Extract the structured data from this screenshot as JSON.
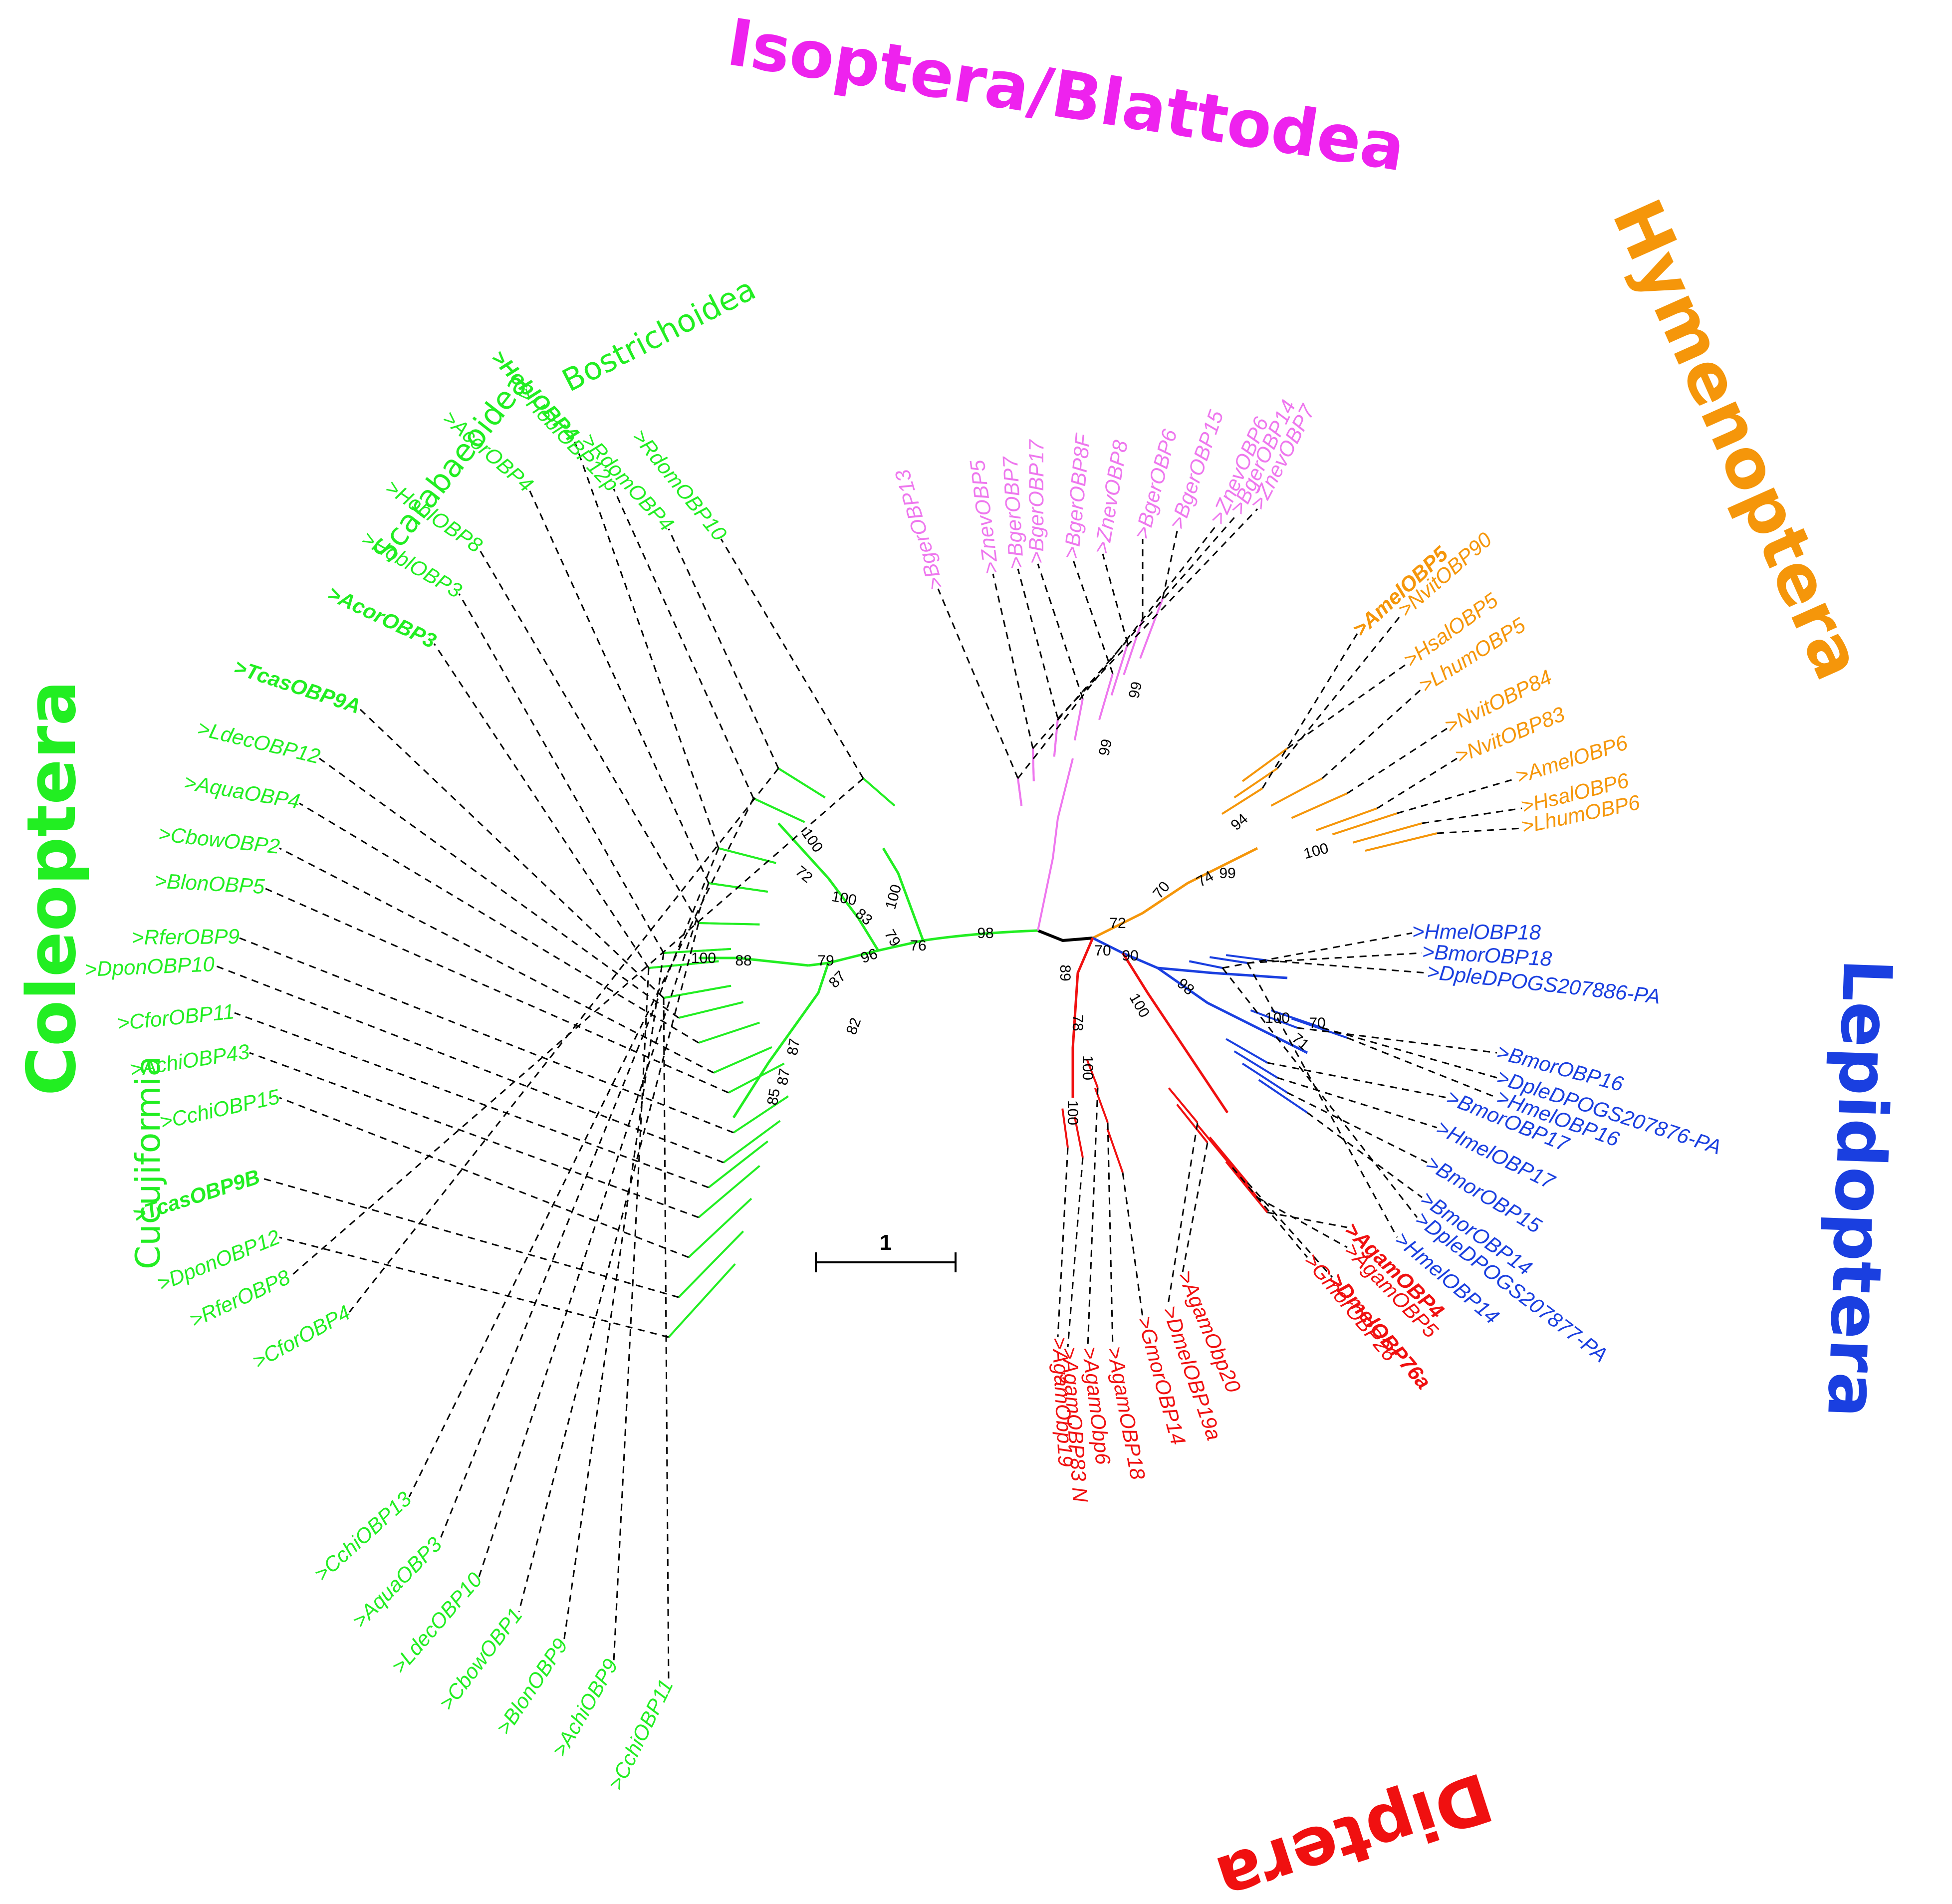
{
  "colors": {
    "coleoptera": "#22ee22",
    "isoptera": "#ee22ee",
    "isoptera_leaf": "#ee77ee",
    "hymenoptera": "#f5960a",
    "lepidoptera": "#1a3fe0",
    "diptera": "#f01010",
    "backbone": "#000000"
  },
  "order_labels": {
    "isoptera": "Isoptera/Blattodea",
    "hymenoptera": "Hymenoptera",
    "lepidoptera": "Lepidoptera",
    "diptera": "Diptera",
    "coleoptera": "Coleoptera"
  },
  "sub_labels": {
    "bostrichoidea": "Bostrichoidea",
    "scarabaeoidea": "Scarabaeoidea",
    "cucujiformia": "Cucujiformia"
  },
  "scale_bar": {
    "label": "1"
  },
  "leaves": {
    "coleoptera": [
      {
        "label": ">RdomOBP10",
        "bold": false
      },
      {
        "label": ">RdomOBP4",
        "bold": false
      },
      {
        "label": ">HoblOBP12p",
        "bold": false
      },
      {
        "label": ">HoblOBP4",
        "bold": true
      },
      {
        "label": ">AcorOBP4",
        "bold": false
      },
      {
        "label": ">HoblOBP8",
        "bold": false
      },
      {
        "label": ">HoblOBP3",
        "bold": false
      },
      {
        "label": ">AcorOBP3",
        "bold": true
      },
      {
        "label": ">TcasOBP9A",
        "bold": true
      },
      {
        "label": ">LdecOBP12",
        "bold": false
      },
      {
        "label": ">AquaOBP4",
        "bold": false
      },
      {
        "label": ">CbowOBP2",
        "bold": false
      },
      {
        "label": ">BlonOBP5",
        "bold": false
      },
      {
        "label": ">RferOBP9",
        "bold": false
      },
      {
        "label": ">DponOBP10",
        "bold": false
      },
      {
        "label": ">CforOBP11",
        "bold": false
      },
      {
        "label": ">AchiOBP43",
        "bold": false
      },
      {
        "label": ">CchiOBP15",
        "bold": false
      },
      {
        "label": ">TcasOBP9B",
        "bold": true
      },
      {
        "label": ">DponOBP12",
        "bold": false
      },
      {
        "label": ">RferOBP8",
        "bold": false
      },
      {
        "label": ">CforOBP4",
        "bold": false
      },
      {
        "label": ">CchiOBP13",
        "bold": false
      },
      {
        "label": ">AquaOBP3",
        "bold": false
      },
      {
        "label": ">LdecOBP10",
        "bold": false
      },
      {
        "label": ">CbowOBP1",
        "bold": false
      },
      {
        "label": ">BlonOBP9",
        "bold": false
      },
      {
        "label": ">AchiOBP9",
        "bold": false
      },
      {
        "label": ">CchiOBP11",
        "bold": false
      }
    ],
    "isoptera": [
      {
        "label": ">BgerOBP13",
        "bold": false
      },
      {
        "label": ">ZnevOBP5",
        "bold": false
      },
      {
        "label": ">BgerOBP7",
        "bold": false
      },
      {
        "label": ">BgerOBP17",
        "bold": false
      },
      {
        "label": ">BgerOBP8F",
        "bold": false
      },
      {
        "label": ">ZnevOBP8",
        "bold": false
      },
      {
        "label": ">BgerOBP6",
        "bold": false
      },
      {
        "label": ">BgerOBP15",
        "bold": false
      },
      {
        "label": ">ZnevOBP6",
        "bold": false
      },
      {
        "label": ">BgerOBP14",
        "bold": false
      },
      {
        "label": ">ZnevOBP7",
        "bold": false
      }
    ],
    "hymenoptera": [
      {
        "label": ">AmelOBP5",
        "bold": true
      },
      {
        "label": ">NvitOBP90",
        "bold": false
      },
      {
        "label": ">HsalOBP5",
        "bold": false
      },
      {
        "label": ">LhumOBP5",
        "bold": false
      },
      {
        "label": ">NvitOBP84",
        "bold": false
      },
      {
        "label": ">NvitOBP83",
        "bold": false
      },
      {
        "label": ">AmelOBP6",
        "bold": false
      },
      {
        "label": ">HsalOBP6",
        "bold": false
      },
      {
        "label": ">LhumOBP6",
        "bold": false
      }
    ],
    "lepidoptera": [
      {
        "label": ">HmelOBP18",
        "bold": false
      },
      {
        "label": ">BmorOBP18",
        "bold": false
      },
      {
        "label": ">DpleDPOGS207886-PA",
        "bold": false
      },
      {
        "label": ">BmorOBP16",
        "bold": false
      },
      {
        "label": ">DpleDPOGS207876-PA",
        "bold": false
      },
      {
        "label": ">HmelOBP16",
        "bold": false
      },
      {
        "label": ">BmorOBP17",
        "bold": false
      },
      {
        "label": ">HmelOBP17",
        "bold": false
      },
      {
        "label": ">BmorOBP15",
        "bold": false
      },
      {
        "label": ">BmorOBP14",
        "bold": false
      },
      {
        "label": ">DpleDPOGS207877-PA",
        "bold": false
      },
      {
        "label": ">HmelOBP14",
        "bold": false
      }
    ],
    "diptera": [
      {
        "label": ">AgamObp19",
        "bold": false
      },
      {
        "label": ">AgamOBP83 N",
        "bold": false
      },
      {
        "label": ">AgamObp6",
        "bold": false
      },
      {
        "label": ">AgamOBP18",
        "bold": false
      },
      {
        "label": ">GmorOBP14",
        "bold": false
      },
      {
        "label": ">DmelOBP19a",
        "bold": false
      },
      {
        "label": ">AgamObp20",
        "bold": false
      },
      {
        "label": ">GmorOBP26",
        "bold": false
      },
      {
        "label": ">DmelOBP76a",
        "bold": true
      },
      {
        "label": ">AgamOBP5",
        "bold": false
      },
      {
        "label": ">AgamOBP4",
        "bold": true
      }
    ]
  },
  "bootstrap": [
    "100",
    "72",
    "100",
    "83",
    "100",
    "79",
    "76",
    "98",
    "79",
    "96",
    "87",
    "82",
    "100",
    "88",
    "87",
    "85",
    "87",
    "99",
    "99",
    "94",
    "70",
    "74",
    "99",
    "100",
    "72",
    "70",
    "90",
    "98",
    "100",
    "70",
    "71",
    "89",
    "78",
    "100",
    "100",
    "100"
  ]
}
